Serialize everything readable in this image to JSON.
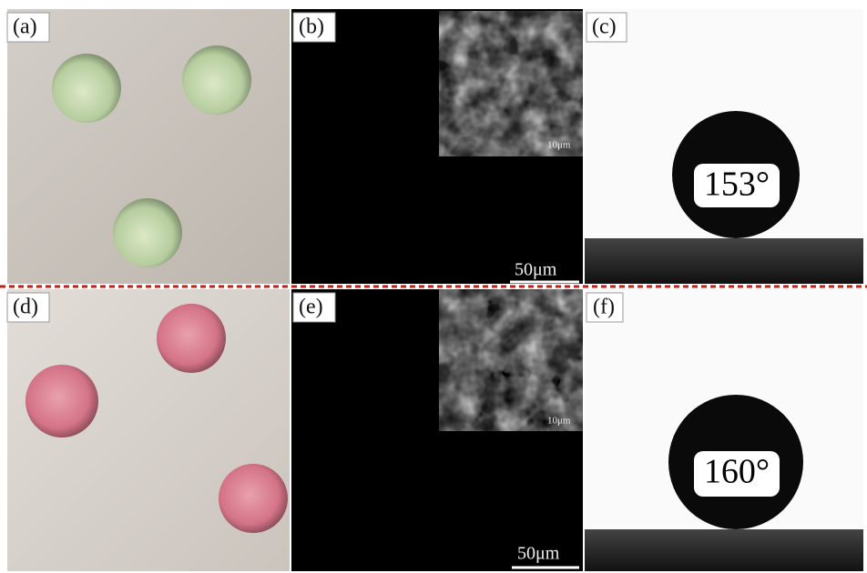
{
  "panels": [
    {
      "label": "(a)"
    },
    {
      "label": "(b)",
      "inset_scale": "10μm",
      "scale": "50μm"
    },
    {
      "label": "(c)",
      "angle": "153°"
    },
    {
      "label": "(d)"
    },
    {
      "label": "(e)",
      "inset_scale": "10μm",
      "scale": "50μm"
    },
    {
      "label": "(f)",
      "angle": "160°"
    }
  ]
}
